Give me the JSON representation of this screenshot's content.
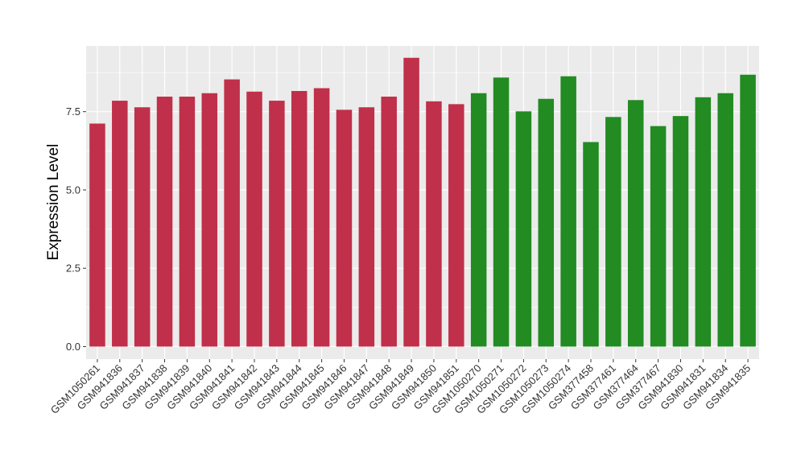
{
  "chart_data": {
    "type": "bar",
    "ylabel": "Expression Level",
    "xlabel": "",
    "ylim": [
      -0.4,
      9.6
    ],
    "yticks": [
      0.0,
      2.5,
      5.0,
      7.5
    ],
    "ytick_labels": [
      "0.0",
      "2.5",
      "5.0",
      "7.5"
    ],
    "grid": true,
    "legend": "none",
    "panel_color": "#EBEBEB",
    "categories": [
      "GSM1050261",
      "GSM941836",
      "GSM941837",
      "GSM941838",
      "GSM941839",
      "GSM941840",
      "GSM941841",
      "GSM941842",
      "GSM941843",
      "GSM941844",
      "GSM941845",
      "GSM941846",
      "GSM941847",
      "GSM941848",
      "GSM941849",
      "GSM941850",
      "GSM941851",
      "GSM1050270",
      "GSM1050271",
      "GSM1050272",
      "GSM1050273",
      "GSM1050274",
      "GSM377458",
      "GSM377461",
      "GSM377464",
      "GSM377467",
      "GSM941830",
      "GSM941831",
      "GSM941834",
      "GSM941835"
    ],
    "values": [
      7.12,
      7.85,
      7.64,
      7.98,
      7.98,
      8.09,
      8.53,
      8.14,
      7.85,
      8.16,
      8.25,
      7.56,
      7.64,
      7.98,
      9.22,
      7.83,
      7.74,
      8.09,
      8.59,
      7.51,
      7.91,
      8.63,
      6.53,
      7.33,
      7.87,
      7.04,
      7.36,
      7.96,
      8.09,
      8.68
    ],
    "bar_colors": [
      "#C0304A",
      "#C0304A",
      "#C0304A",
      "#C0304A",
      "#C0304A",
      "#C0304A",
      "#C0304A",
      "#C0304A",
      "#C0304A",
      "#C0304A",
      "#C0304A",
      "#C0304A",
      "#C0304A",
      "#C0304A",
      "#C0304A",
      "#C0304A",
      "#C0304A",
      "#228B22",
      "#228B22",
      "#228B22",
      "#228B22",
      "#228B22",
      "#228B22",
      "#228B22",
      "#228B22",
      "#228B22",
      "#228B22",
      "#228B22",
      "#228B22",
      "#228B22"
    ]
  }
}
